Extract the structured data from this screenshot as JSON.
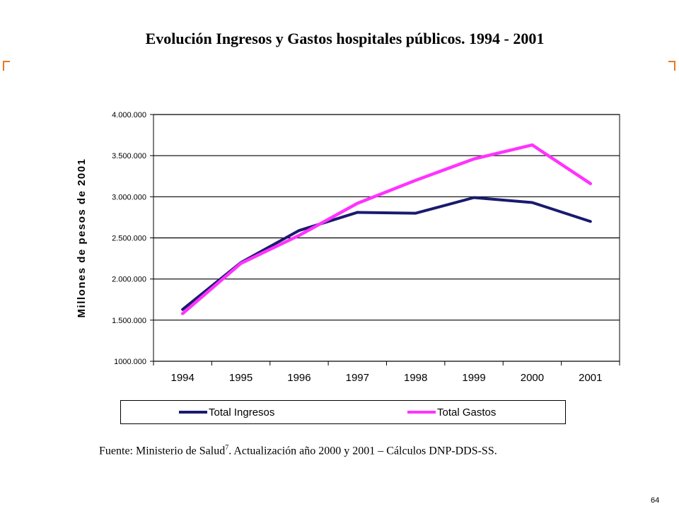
{
  "page": {
    "title": "Evolución Ingresos y Gastos hospitales públicos. 1994 - 2001",
    "source_prefix": "Fuente: Ministerio de Salud",
    "source_sup": "7",
    "source_suffix": ". Actualización año 2000 y 2001 – Cálculos DNP-DDS-SS.",
    "page_number": "64",
    "accent_color": "#e07a28"
  },
  "chart_data": {
    "type": "line",
    "title": "Evolución Ingresos y Gastos hospitales públicos. 1994 - 2001",
    "ylabel": "Millones de pesos de 2001",
    "xlabel": "",
    "categories": [
      "1994",
      "1995",
      "1996",
      "1997",
      "1998",
      "1999",
      "2000",
      "2001"
    ],
    "ylim": [
      1000000,
      4000000
    ],
    "yticks": [
      1000000,
      1500000,
      2000000,
      2500000,
      3000000,
      3500000,
      4000000
    ],
    "ytick_labels": [
      "1000.000",
      "1.500.000",
      "2.000.000",
      "2.500.000",
      "3.000.000",
      "3.500.000",
      "4.000.000"
    ],
    "grid": true,
    "legend": "bottom",
    "series": [
      {
        "name": "Total Ingresos",
        "color": "#1a1a6e",
        "values": [
          1630000,
          2200000,
          2590000,
          2810000,
          2800000,
          2990000,
          2930000,
          2700000
        ]
      },
      {
        "name": "Total Gastos",
        "color": "#ff33ff",
        "values": [
          1580000,
          2190000,
          2530000,
          2920000,
          3200000,
          3460000,
          3630000,
          3160000
        ]
      }
    ]
  }
}
